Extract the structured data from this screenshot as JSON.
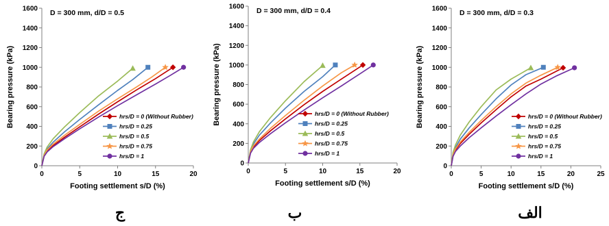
{
  "chart_data": [
    {
      "type": "line",
      "title": "D = 300 mm, d/D = 0.5",
      "xlabel": "Footing settlement  s/D (%)",
      "ylabel": "Bearing pressure (kPa)",
      "xlim": [
        0,
        20
      ],
      "ylim": [
        0,
        1600
      ],
      "xticks": [
        0,
        5,
        10,
        15,
        20
      ],
      "yticks": [
        0,
        200,
        400,
        600,
        800,
        1000,
        1200,
        1400,
        1600
      ],
      "grid": false,
      "legend_position": "lower-right",
      "panel_label": "ج",
      "series": [
        {
          "name": "hrs/D = 0 (Without Rubber)",
          "color": "#c00000",
          "marker": "diamond",
          "x": [
            0,
            0.3,
            0.7,
            1.5,
            3,
            5,
            7.5,
            10,
            12.5,
            15,
            17.3
          ],
          "y": [
            0,
            100,
            150,
            205,
            290,
            395,
            525,
            650,
            770,
            885,
            1000
          ]
        },
        {
          "name": "hrs/D = 0.25",
          "color": "#4f81bd",
          "marker": "square",
          "x": [
            0,
            0.3,
            0.7,
            1.5,
            3,
            5,
            7.5,
            10,
            12,
            14
          ],
          "y": [
            0,
            110,
            170,
            240,
            345,
            470,
            620,
            765,
            875,
            1000
          ]
        },
        {
          "name": "hrs/D = 0.5",
          "color": "#9bbb59",
          "marker": "triangle",
          "x": [
            0,
            0.3,
            0.7,
            1.5,
            3,
            5,
            7.5,
            10,
            12
          ],
          "y": [
            0,
            120,
            190,
            275,
            395,
            540,
            710,
            860,
            990
          ]
        },
        {
          "name": "hrs/D = 0.75",
          "color": "#f79646",
          "marker": "star",
          "x": [
            0,
            0.3,
            0.7,
            1.5,
            3,
            5,
            7.5,
            10,
            12.5,
            14.5,
            16.3
          ],
          "y": [
            0,
            105,
            160,
            220,
            310,
            420,
            555,
            680,
            800,
            900,
            1000
          ]
        },
        {
          "name": "hrs/D = 1",
          "color": "#7030a0",
          "marker": "circle",
          "x": [
            0,
            0.3,
            0.7,
            1.5,
            3,
            5,
            7.5,
            10,
            12.5,
            15,
            17,
            18.7
          ],
          "y": [
            0,
            95,
            140,
            195,
            275,
            375,
            495,
            610,
            720,
            830,
            920,
            1000
          ]
        }
      ]
    },
    {
      "type": "line",
      "title": "D = 300 mm, d/D = 0.4",
      "xlabel": "Footing settlement  s/D (%)",
      "ylabel": "Bearing pressure (kPa)",
      "xlim": [
        0,
        20
      ],
      "ylim": [
        0,
        1600
      ],
      "xticks": [
        0,
        5,
        10,
        15,
        20
      ],
      "yticks": [
        0,
        200,
        400,
        600,
        800,
        1000,
        1200,
        1400,
        1600
      ],
      "grid": false,
      "legend_position": "lower-right",
      "panel_label": "ب",
      "series": [
        {
          "name": "hrs/D = 0 (Without Rubber)",
          "color": "#c00000",
          "marker": "diamond",
          "x": [
            0,
            0.3,
            0.7,
            1.5,
            3,
            5,
            7.5,
            10,
            12.5,
            15.4
          ],
          "y": [
            0,
            110,
            165,
            230,
            330,
            450,
            595,
            730,
            855,
            1000
          ]
        },
        {
          "name": "hrs/D = 0.25",
          "color": "#4f81bd",
          "marker": "square",
          "x": [
            0,
            0.3,
            0.7,
            1.5,
            3,
            5,
            7.5,
            10,
            11.7
          ],
          "y": [
            0,
            125,
            195,
            285,
            410,
            560,
            730,
            880,
            1000
          ]
        },
        {
          "name": "hrs/D = 0.5",
          "color": "#9bbb59",
          "marker": "triangle",
          "x": [
            0,
            0.3,
            0.7,
            1.5,
            3,
            5,
            7.5,
            10
          ],
          "y": [
            0,
            135,
            215,
            320,
            465,
            635,
            830,
            995
          ]
        },
        {
          "name": "hrs/D = 0.75",
          "color": "#f79646",
          "marker": "star",
          "x": [
            0,
            0.3,
            0.7,
            1.5,
            3,
            5,
            7.5,
            10,
            12.5,
            14.3
          ],
          "y": [
            0,
            115,
            175,
            245,
            355,
            485,
            640,
            785,
            920,
            1000
          ]
        },
        {
          "name": "hrs/D = 1",
          "color": "#7030a0",
          "marker": "circle",
          "x": [
            0,
            0.3,
            0.7,
            1.5,
            3,
            5,
            7.5,
            10,
            12.5,
            15,
            16.8
          ],
          "y": [
            0,
            100,
            150,
            210,
            300,
            410,
            540,
            665,
            785,
            910,
            1000
          ]
        }
      ]
    },
    {
      "type": "line",
      "title": "D = 300 mm, d/D = 0.3",
      "xlabel": "Footing settlement  s/D (%)",
      "ylabel": "Bearing pressure (kPa)",
      "xlim": [
        0,
        25
      ],
      "ylim": [
        0,
        1600
      ],
      "xticks": [
        0,
        5,
        10,
        15,
        20,
        25
      ],
      "yticks": [
        0,
        200,
        400,
        600,
        800,
        1000,
        1200,
        1400,
        1600
      ],
      "grid": false,
      "legend_position": "lower-right",
      "panel_label": "الف",
      "series": [
        {
          "name": "hrs/D = 0 (Without Rubber)",
          "color": "#c00000",
          "marker": "diamond",
          "x": [
            0,
            0.3,
            0.7,
            1.5,
            3,
            5,
            7.5,
            10,
            12.5,
            15,
            18.7
          ],
          "y": [
            0,
            105,
            160,
            225,
            320,
            435,
            570,
            700,
            810,
            880,
            995
          ]
        },
        {
          "name": "hrs/D = 0.25",
          "color": "#4f81bd",
          "marker": "square",
          "x": [
            0,
            0.3,
            0.7,
            1.5,
            3,
            5,
            7.5,
            10,
            12.5,
            15.4
          ],
          "y": [
            0,
            120,
            185,
            270,
            385,
            520,
            680,
            820,
            925,
            1000
          ]
        },
        {
          "name": "hrs/D = 0.5",
          "color": "#9bbb59",
          "marker": "triangle",
          "x": [
            0,
            0.3,
            0.7,
            1.5,
            3,
            5,
            7.5,
            10,
            13.3
          ],
          "y": [
            0,
            135,
            210,
            310,
            445,
            600,
            770,
            880,
            995
          ]
        },
        {
          "name": "hrs/D = 0.75",
          "color": "#f79646",
          "marker": "star",
          "x": [
            0,
            0.3,
            0.7,
            1.5,
            3,
            5,
            7.5,
            10,
            12.5,
            15,
            17.8
          ],
          "y": [
            0,
            110,
            170,
            240,
            340,
            460,
            600,
            730,
            840,
            920,
            1000
          ]
        },
        {
          "name": "hrs/D = 1",
          "color": "#7030a0",
          "marker": "circle",
          "x": [
            0,
            0.3,
            0.7,
            1.5,
            3,
            5,
            7.5,
            10,
            12.5,
            15,
            17.5,
            20.6
          ],
          "y": [
            0,
            95,
            145,
            200,
            285,
            385,
            505,
            620,
            730,
            830,
            910,
            995
          ]
        }
      ]
    }
  ]
}
